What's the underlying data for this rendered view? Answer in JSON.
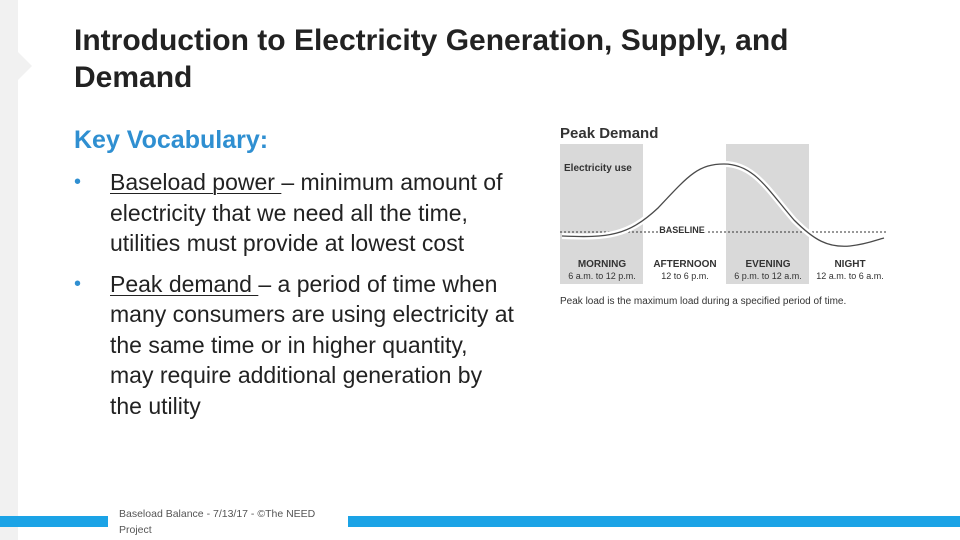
{
  "slide": {
    "title": "Introduction to Electricity Generation, Supply, and Demand",
    "subtitle": "Key Vocabulary:",
    "bullets": [
      {
        "term": "Baseload  power ",
        "definition": "– minimum amount of electricity that we need all the time, utilities must provide at lowest cost"
      },
      {
        "term": "Peak demand ",
        "definition": "– a period of time when many consumers are using electricity at the same time or in higher quantity, may require additional generation by the utility"
      }
    ],
    "footer": "Baseload Balance - 7/13/17 - ©The NEED Project"
  },
  "diagram": {
    "title": "Peak Demand",
    "y_label": "Electricity use",
    "baseline_label": "BASELINE",
    "periods": [
      {
        "name": "MORNING",
        "time": "6 a.m. to 12 p.m.",
        "shaded": true
      },
      {
        "name": "AFTERNOON",
        "time": "12 to 6 p.m.",
        "shaded": false
      },
      {
        "name": "EVENING",
        "time": "6 p.m. to 12 a.m.",
        "shaded": true
      },
      {
        "name": "NIGHT",
        "time": "12 a.m. to 6 a.m.",
        "shaded": false
      }
    ],
    "caption": "Peak load is the maximum load during a specified period of time.",
    "colors": {
      "shade": "#d9d9d9",
      "curve": "#4a4a4a",
      "baseline": "#333333"
    }
  }
}
